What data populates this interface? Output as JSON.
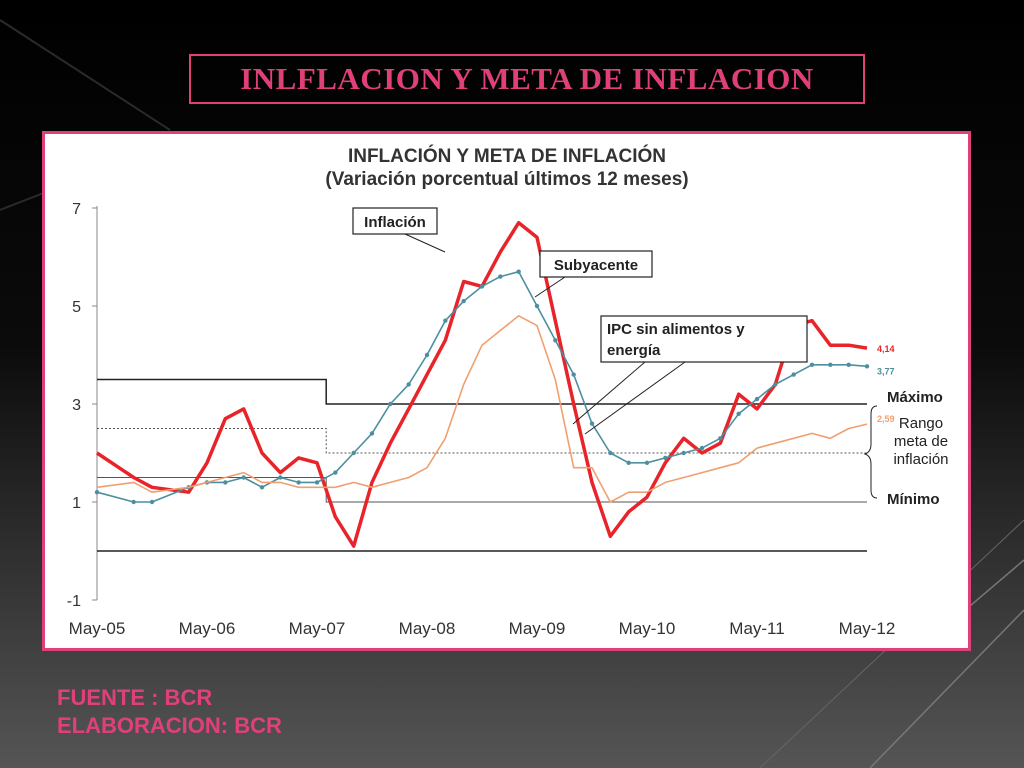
{
  "slide": {
    "title": "INLFLACION Y META DE INFLACION",
    "source": "FUENTE : BCR",
    "elaboration": "ELABORACION: BCR"
  },
  "chart_data": {
    "type": "line",
    "title": "INFLACIÓN Y META DE INFLACIÓN",
    "subtitle": "(Variación porcentual últimos 12 meses)",
    "x_tick_labels": [
      "May-05",
      "May-06",
      "May-07",
      "May-08",
      "May-09",
      "May-10",
      "May-11",
      "May-12"
    ],
    "xlim": [
      "May-05",
      "May-12"
    ],
    "ylim": [
      -1,
      7
    ],
    "y_ticks": [
      -1,
      1,
      3,
      5,
      7
    ],
    "series": [
      {
        "name": "Inflación",
        "color": "#e8242a",
        "x": [
          "May-05",
          "Sep-05",
          "Nov-05",
          "Mar-06",
          "May-06",
          "Jul-06",
          "Sep-06",
          "Nov-06",
          "Jan-07",
          "Mar-07",
          "May-07",
          "Jul-07",
          "Sep-07",
          "Nov-07",
          "Jan-08",
          "Mar-08",
          "May-08",
          "Jul-08",
          "Sep-08",
          "Nov-08",
          "Jan-09",
          "Mar-09",
          "May-09",
          "Jul-09",
          "Sep-09",
          "Nov-09",
          "Jan-10",
          "Mar-10",
          "May-10",
          "Jul-10",
          "Sep-10",
          "Nov-10",
          "Jan-11",
          "Mar-11",
          "May-11",
          "Jul-11",
          "Sep-11",
          "Nov-11",
          "Jan-12",
          "Mar-12",
          "May-12"
        ],
        "values": [
          2.0,
          1.5,
          1.3,
          1.2,
          1.8,
          2.7,
          2.9,
          2.0,
          1.6,
          1.9,
          1.8,
          0.7,
          0.1,
          1.4,
          2.2,
          2.9,
          3.6,
          4.3,
          5.5,
          5.4,
          6.1,
          6.7,
          6.4,
          4.7,
          3.0,
          1.4,
          0.3,
          0.8,
          1.1,
          1.8,
          2.3,
          2.0,
          2.2,
          3.2,
          2.9,
          3.4,
          4.6,
          4.7,
          4.2,
          4.2,
          4.14
        ],
        "end_label": "4,14"
      },
      {
        "name": "Subyacente",
        "color": "#4d8fa0",
        "x": [
          "May-05",
          "Sep-05",
          "Nov-05",
          "Mar-06",
          "May-06",
          "Jul-06",
          "Sep-06",
          "Nov-06",
          "Jan-07",
          "Mar-07",
          "May-07",
          "Jul-07",
          "Sep-07",
          "Nov-07",
          "Jan-08",
          "Mar-08",
          "May-08",
          "Jul-08",
          "Sep-08",
          "Nov-08",
          "Jan-09",
          "Mar-09",
          "May-09",
          "Jul-09",
          "Sep-09",
          "Nov-09",
          "Jan-10",
          "Mar-10",
          "May-10",
          "Jul-10",
          "Sep-10",
          "Nov-10",
          "Jan-11",
          "Mar-11",
          "May-11",
          "Jul-11",
          "Sep-11",
          "Nov-11",
          "Jan-12",
          "Mar-12",
          "May-12"
        ],
        "values": [
          1.2,
          1.0,
          1.0,
          1.3,
          1.4,
          1.4,
          1.5,
          1.3,
          1.5,
          1.4,
          1.4,
          1.6,
          2.0,
          2.4,
          3.0,
          3.4,
          4.0,
          4.7,
          5.1,
          5.4,
          5.6,
          5.7,
          5.0,
          4.3,
          3.6,
          2.6,
          2.0,
          1.8,
          1.8,
          1.9,
          2.0,
          2.1,
          2.3,
          2.8,
          3.1,
          3.4,
          3.6,
          3.8,
          3.8,
          3.8,
          3.77
        ],
        "end_label": "3,77"
      },
      {
        "name": "IPC sin alimentos y energía",
        "color": "#f0a070",
        "x": [
          "May-05",
          "Sep-05",
          "Nov-05",
          "Mar-06",
          "May-06",
          "Jul-06",
          "Sep-06",
          "Nov-06",
          "Jan-07",
          "Mar-07",
          "May-07",
          "Jul-07",
          "Sep-07",
          "Nov-07",
          "Jan-08",
          "Mar-08",
          "May-08",
          "Jul-08",
          "Sep-08",
          "Nov-08",
          "Jan-09",
          "Mar-09",
          "May-09",
          "Jul-09",
          "Sep-09",
          "Nov-09",
          "Jan-10",
          "Mar-10",
          "May-10",
          "Jul-10",
          "Sep-10",
          "Nov-10",
          "Jan-11",
          "Mar-11",
          "May-11",
          "Jul-11",
          "Sep-11",
          "Nov-11",
          "Jan-12",
          "Mar-12",
          "May-12"
        ],
        "values": [
          1.3,
          1.4,
          1.2,
          1.3,
          1.4,
          1.5,
          1.6,
          1.4,
          1.4,
          1.3,
          1.3,
          1.3,
          1.4,
          1.3,
          1.4,
          1.5,
          1.7,
          2.3,
          3.4,
          4.2,
          4.5,
          4.8,
          4.6,
          3.5,
          1.7,
          1.7,
          1.0,
          1.2,
          1.2,
          1.4,
          1.5,
          1.6,
          1.7,
          1.8,
          2.1,
          2.2,
          2.3,
          2.4,
          2.3,
          2.5,
          2.59
        ],
        "end_label": "2,59"
      }
    ],
    "target_bands": {
      "max": {
        "label": "Máximo",
        "x": [
          "May-05",
          "Jun-07",
          "Jun-07",
          "May-12"
        ],
        "values": [
          3.5,
          3.5,
          3.0,
          3.0
        ]
      },
      "center": {
        "x": [
          "May-05",
          "Jun-07",
          "Jun-07",
          "May-12"
        ],
        "values": [
          2.5,
          2.5,
          2.0,
          2.0
        ]
      },
      "min": {
        "label": "Mínimo",
        "x": [
          "May-05",
          "Jun-07",
          "Jun-07",
          "May-12"
        ],
        "values": [
          1.5,
          1.5,
          1.0,
          1.0
        ]
      },
      "zero_line": 0,
      "range_label": [
        "Rango",
        "meta de",
        "inflación"
      ]
    },
    "callouts": {
      "inflation": "Inflación",
      "core": "Subyacente",
      "ipc_line1": "IPC sin alimentos y",
      "ipc_line2": "energía"
    },
    "grid": false,
    "legend": "callout-labels"
  }
}
